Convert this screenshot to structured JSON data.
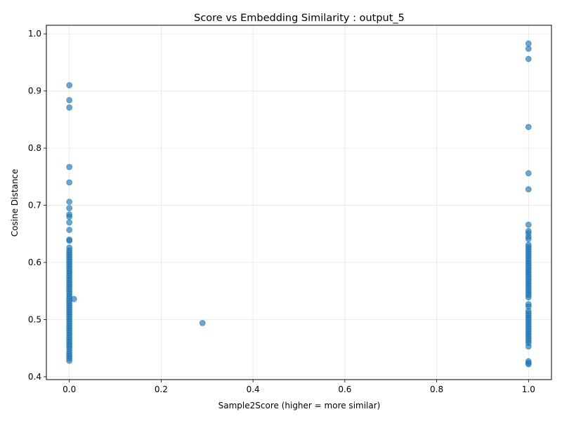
{
  "chart_data": {
    "type": "scatter",
    "title": "Score vs Embedding Similarity : output_5",
    "xlabel": "Sample2Score (higher = more similar)",
    "ylabel": "Cosine Distance",
    "xlim": [
      -0.05,
      1.05
    ],
    "ylim": [
      0.395,
      1.015
    ],
    "xticks": [
      0.0,
      0.2,
      0.4,
      0.6,
      0.8,
      1.0
    ],
    "xtick_labels": [
      "0.0",
      "0.2",
      "0.4",
      "0.6",
      "0.8",
      "1.0"
    ],
    "yticks": [
      0.4,
      0.5,
      0.6,
      0.7,
      0.8,
      0.9,
      1.0
    ],
    "ytick_labels": [
      "0.4",
      "0.5",
      "0.6",
      "0.7",
      "0.8",
      "0.9",
      "1.0"
    ],
    "grid": true,
    "marker_color": "#1f77b4",
    "marker_alpha": 0.65,
    "points": [
      [
        0,
        0.91
      ],
      [
        0,
        0.884
      ],
      [
        0,
        0.871
      ],
      [
        0,
        0.767
      ],
      [
        0,
        0.74
      ],
      [
        0,
        0.706
      ],
      [
        0,
        0.695
      ],
      [
        0,
        0.684
      ],
      [
        0,
        0.68
      ],
      [
        0,
        0.67
      ],
      [
        0,
        0.657
      ],
      [
        0,
        0.64
      ],
      [
        0,
        0.638
      ],
      [
        0,
        0.626
      ],
      [
        0,
        0.621
      ],
      [
        0,
        0.617
      ],
      [
        0,
        0.613
      ],
      [
        0,
        0.609
      ],
      [
        0,
        0.605
      ],
      [
        0,
        0.601
      ],
      [
        0,
        0.597
      ],
      [
        0,
        0.593
      ],
      [
        0,
        0.589
      ],
      [
        0,
        0.585
      ],
      [
        0,
        0.581
      ],
      [
        0,
        0.577
      ],
      [
        0,
        0.573
      ],
      [
        0,
        0.569
      ],
      [
        0,
        0.565
      ],
      [
        0,
        0.561
      ],
      [
        0,
        0.557
      ],
      [
        0,
        0.553
      ],
      [
        0,
        0.549
      ],
      [
        0,
        0.545
      ],
      [
        0,
        0.541
      ],
      [
        0,
        0.537
      ],
      [
        0,
        0.533
      ],
      [
        0,
        0.529
      ],
      [
        0,
        0.525
      ],
      [
        0,
        0.521
      ],
      [
        0,
        0.517
      ],
      [
        0,
        0.513
      ],
      [
        0,
        0.509
      ],
      [
        0,
        0.505
      ],
      [
        0,
        0.501
      ],
      [
        0,
        0.497
      ],
      [
        0,
        0.493
      ],
      [
        0,
        0.489
      ],
      [
        0,
        0.485
      ],
      [
        0,
        0.481
      ],
      [
        0,
        0.477
      ],
      [
        0,
        0.473
      ],
      [
        0,
        0.469
      ],
      [
        0,
        0.465
      ],
      [
        0,
        0.461
      ],
      [
        0,
        0.457
      ],
      [
        0,
        0.453
      ],
      [
        0,
        0.449
      ],
      [
        0,
        0.444
      ],
      [
        0,
        0.44
      ],
      [
        0,
        0.436
      ],
      [
        0,
        0.432
      ],
      [
        0,
        0.428
      ],
      [
        0.01,
        0.536
      ],
      [
        0.29,
        0.494
      ],
      [
        1,
        0.983
      ],
      [
        1,
        0.974
      ],
      [
        1,
        0.956
      ],
      [
        1,
        0.837
      ],
      [
        1,
        0.756
      ],
      [
        1,
        0.728
      ],
      [
        1,
        0.666
      ],
      [
        1,
        0.655
      ],
      [
        1,
        0.651
      ],
      [
        1,
        0.645
      ],
      [
        1,
        0.641
      ],
      [
        1,
        0.631
      ],
      [
        1,
        0.627
      ],
      [
        1,
        0.623
      ],
      [
        1,
        0.619
      ],
      [
        1,
        0.615
      ],
      [
        1,
        0.611
      ],
      [
        1,
        0.607
      ],
      [
        1,
        0.603
      ],
      [
        1,
        0.599
      ],
      [
        1,
        0.595
      ],
      [
        1,
        0.591
      ],
      [
        1,
        0.587
      ],
      [
        1,
        0.583
      ],
      [
        1,
        0.579
      ],
      [
        1,
        0.575
      ],
      [
        1,
        0.571
      ],
      [
        1,
        0.567
      ],
      [
        1,
        0.563
      ],
      [
        1,
        0.559
      ],
      [
        1,
        0.555
      ],
      [
        1,
        0.551
      ],
      [
        1,
        0.547
      ],
      [
        1,
        0.543
      ],
      [
        1,
        0.539
      ],
      [
        1,
        0.527
      ],
      [
        1,
        0.523
      ],
      [
        1,
        0.515
      ],
      [
        1,
        0.511
      ],
      [
        1,
        0.507
      ],
      [
        1,
        0.503
      ],
      [
        1,
        0.499
      ],
      [
        1,
        0.495
      ],
      [
        1,
        0.491
      ],
      [
        1,
        0.487
      ],
      [
        1,
        0.483
      ],
      [
        1,
        0.479
      ],
      [
        1,
        0.475
      ],
      [
        1,
        0.471
      ],
      [
        1,
        0.467
      ],
      [
        1,
        0.463
      ],
      [
        1,
        0.459
      ],
      [
        1,
        0.453
      ],
      [
        1,
        0.427
      ],
      [
        1,
        0.424
      ],
      [
        1,
        0.422
      ]
    ]
  }
}
